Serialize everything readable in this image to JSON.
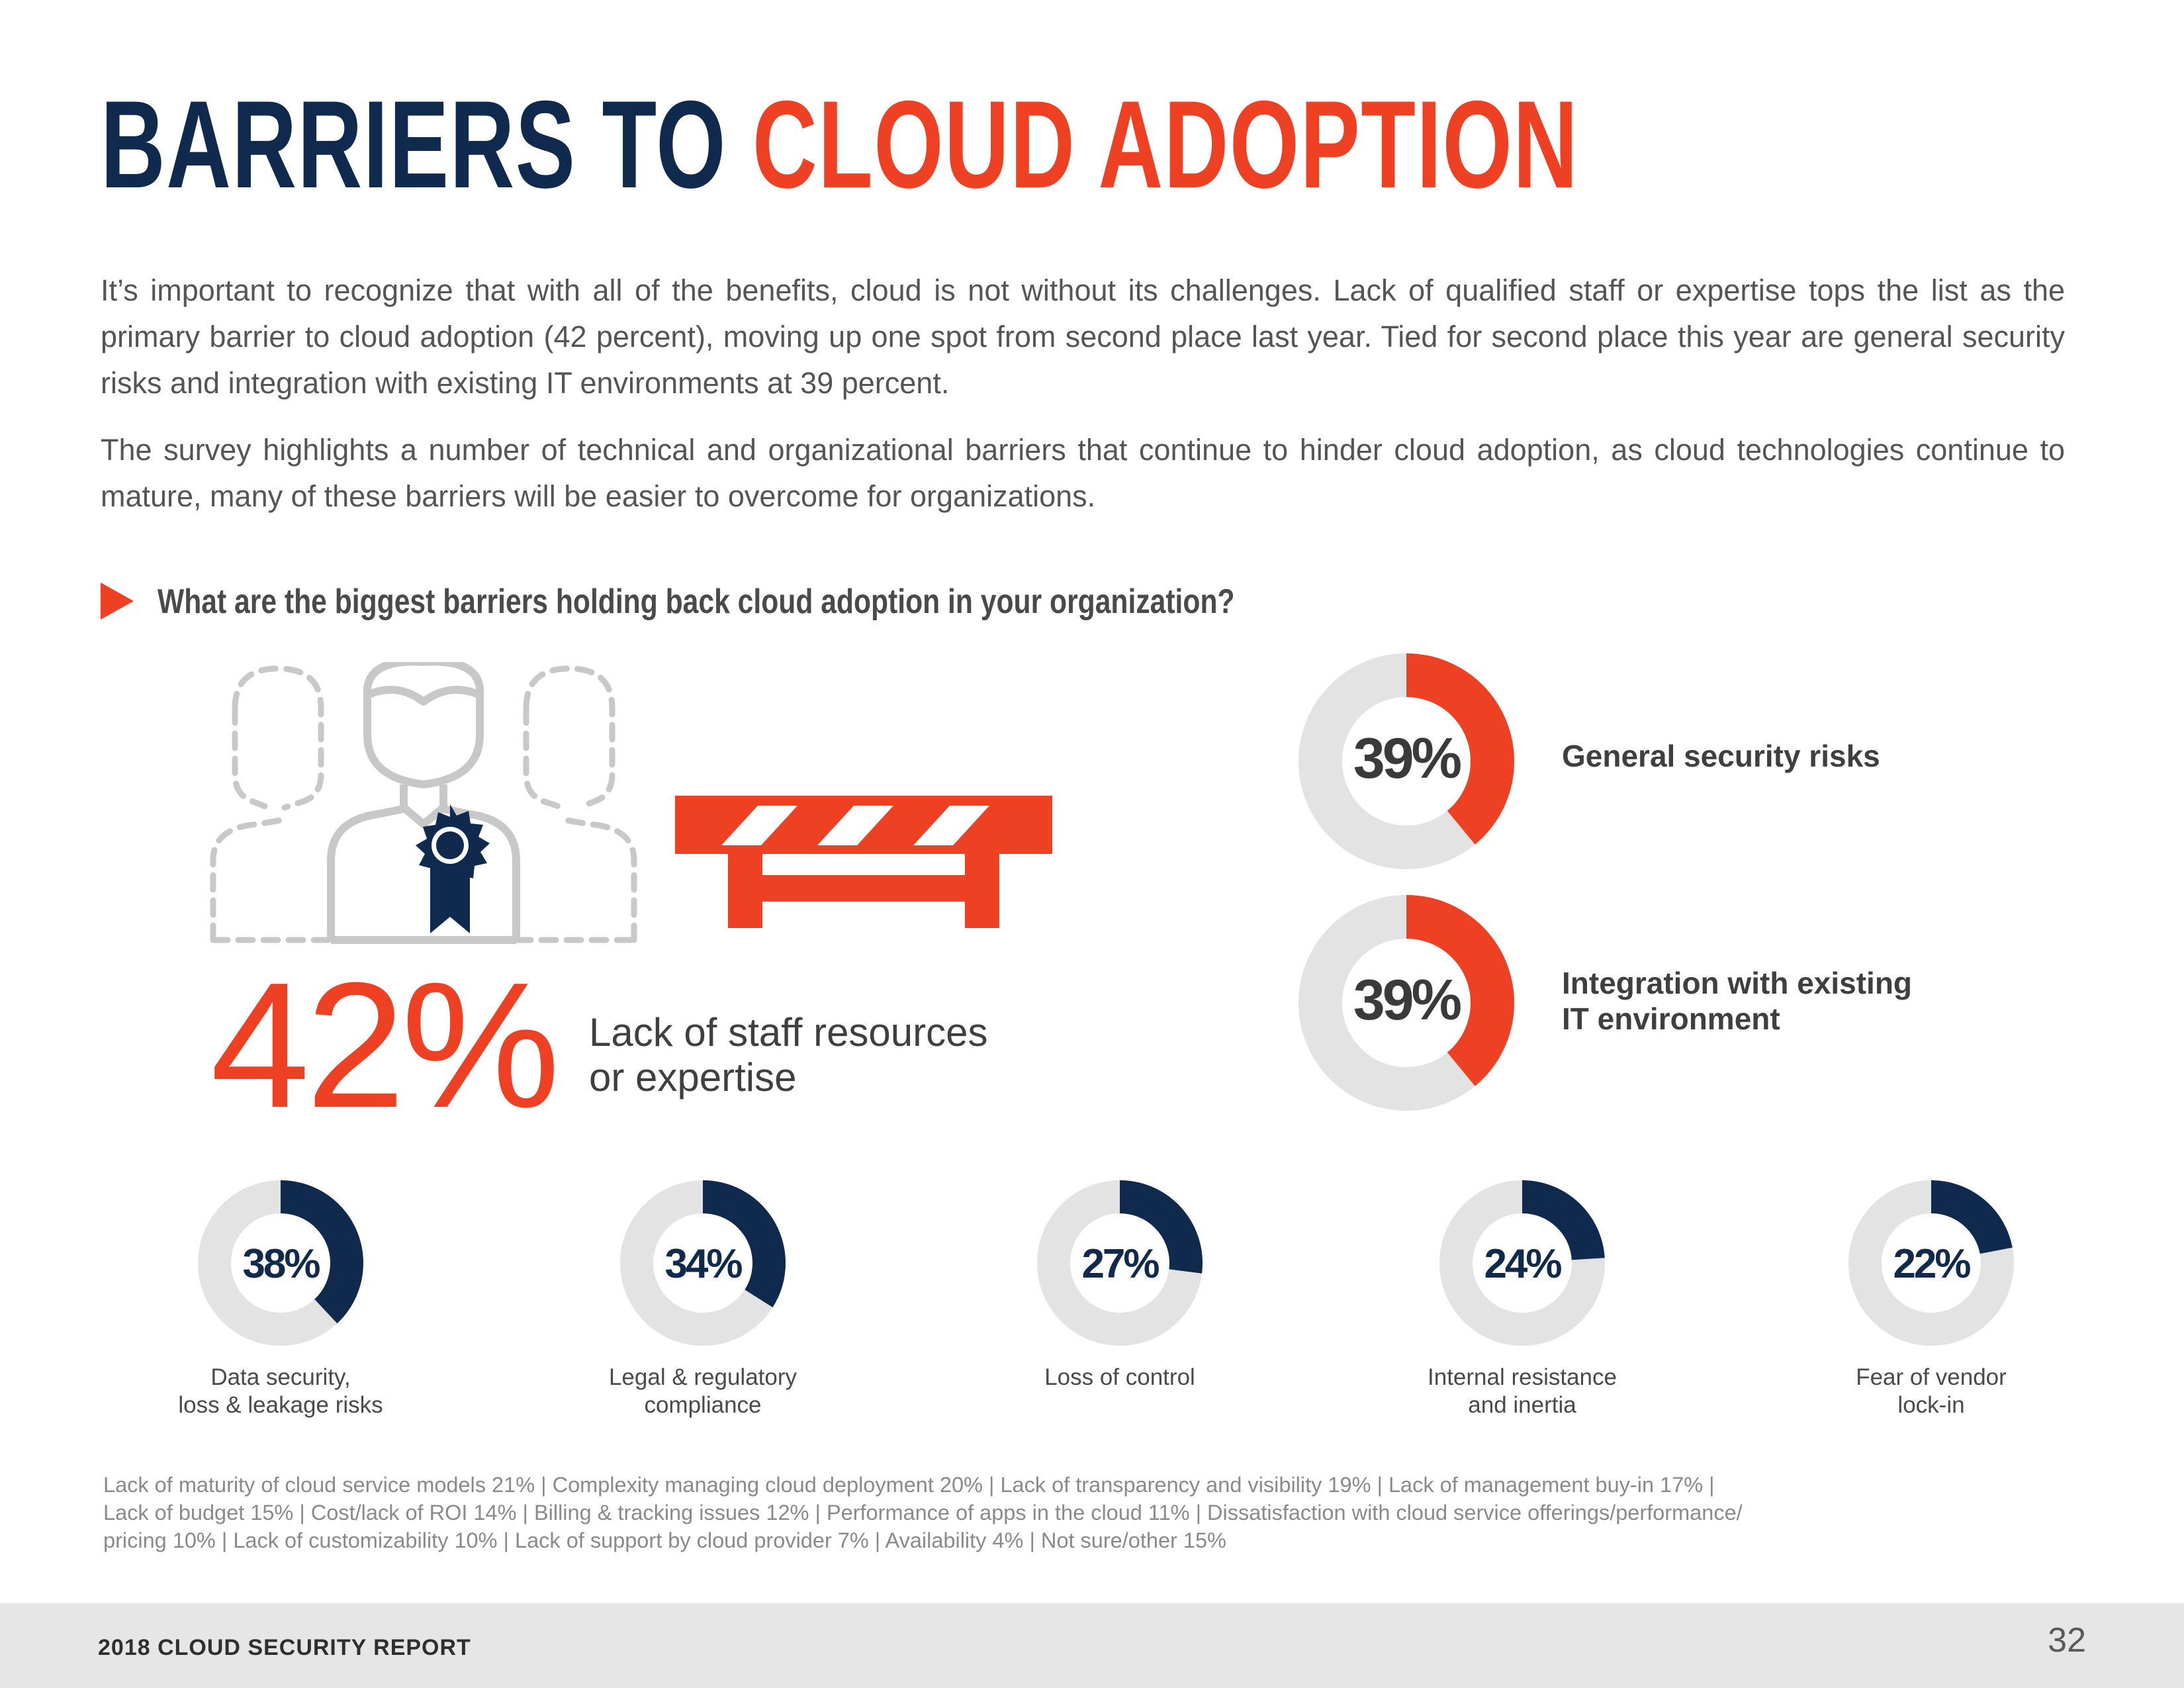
{
  "header": {
    "title_part1": "BARRIERS TO",
    "title_part2": "CLOUD ADOPTION"
  },
  "intro": {
    "paragraph1": "It’s important to recognize that with all of the benefits, cloud is not without its challenges. Lack of qualified staff or expertise tops the list as the primary barrier to cloud adoption (42 percent), moving up one spot from second place last year. Tied for second place this year are general security risks and integration with existing IT environments at 39 percent.",
    "paragraph2": "The survey highlights a number of technical and organizational barriers that continue to hinder cloud adoption, as cloud technologies continue to mature, many of these barriers will be easier to overcome for organizations."
  },
  "question": "What are the biggest barriers holding back cloud adoption in your organization?",
  "colors": {
    "navy": "#0f2a4c",
    "red": "#ee4123",
    "donut_track": "#e3e3e3",
    "icon_gray": "#c8c8c8"
  },
  "icons": [
    "people-icon",
    "award-ribbon-icon",
    "road-barrier-icon",
    "play-arrow-icon"
  ],
  "chart_data": {
    "type": "pie",
    "unit": "%",
    "series": [
      {
        "label": "Lack of staff resources or expertise",
        "value": 42,
        "display": "42%"
      },
      {
        "label": "General security risks",
        "value": 39,
        "display": "39%"
      },
      {
        "label": "Integration with existing IT environment",
        "value": 39,
        "display": "39%"
      },
      {
        "label": "Data security, loss & leakage risks",
        "value": 38,
        "display": "38%"
      },
      {
        "label": "Legal & regulatory compliance",
        "value": 34,
        "display": "34%"
      },
      {
        "label": "Loss of control",
        "value": 27,
        "display": "27%"
      },
      {
        "label": "Internal resistance and inertia",
        "value": 24,
        "display": "24%"
      },
      {
        "label": "Fear of vendor lock-in",
        "value": 22,
        "display": "22%"
      }
    ]
  },
  "highlight": {
    "pct": "42%",
    "label_line1": "Lack of staff resources",
    "label_line2": "or expertise"
  },
  "big_donuts": [
    {
      "pct": "39%",
      "value": 39,
      "label_line1": "General security risks",
      "label_line2": ""
    },
    {
      "pct": "39%",
      "value": 39,
      "label_line1": "Integration with existing",
      "label_line2": "IT environment"
    }
  ],
  "small_donuts": [
    {
      "pct": "38%",
      "value": 38,
      "label_line1": "Data security,",
      "label_line2": "loss & leakage risks"
    },
    {
      "pct": "34%",
      "value": 34,
      "label_line1": "Legal & regulatory",
      "label_line2": "compliance"
    },
    {
      "pct": "27%",
      "value": 27,
      "label_line1": "Loss of control",
      "label_line2": ""
    },
    {
      "pct": "24%",
      "value": 24,
      "label_line1": "Internal resistance",
      "label_line2": "and inertia"
    },
    {
      "pct": "22%",
      "value": 22,
      "label_line1": "Fear of vendor",
      "label_line2": "lock-in"
    }
  ],
  "footnote": {
    "line1": "Lack of maturity of cloud service models 21%  |  Complexity managing cloud deployment 20%  |  Lack of transparency and visibility 19%  |  Lack of management buy-in 17%  |",
    "line2": "Lack of budget  15%  |  Cost/lack of ROI 14%  |  Billing & tracking issues 12%  |  Performance of apps in the cloud 11%  |  Dissatisfaction with cloud service offerings/performance/",
    "line3": "pricing 10%  |  Lack of customizability 10%  |  Lack of support by cloud provider 7%  |  Availability 4%  |  Not sure/other 15%"
  },
  "footer": {
    "report_title": "2018 CLOUD SECURITY REPORT",
    "page_number": "32"
  }
}
